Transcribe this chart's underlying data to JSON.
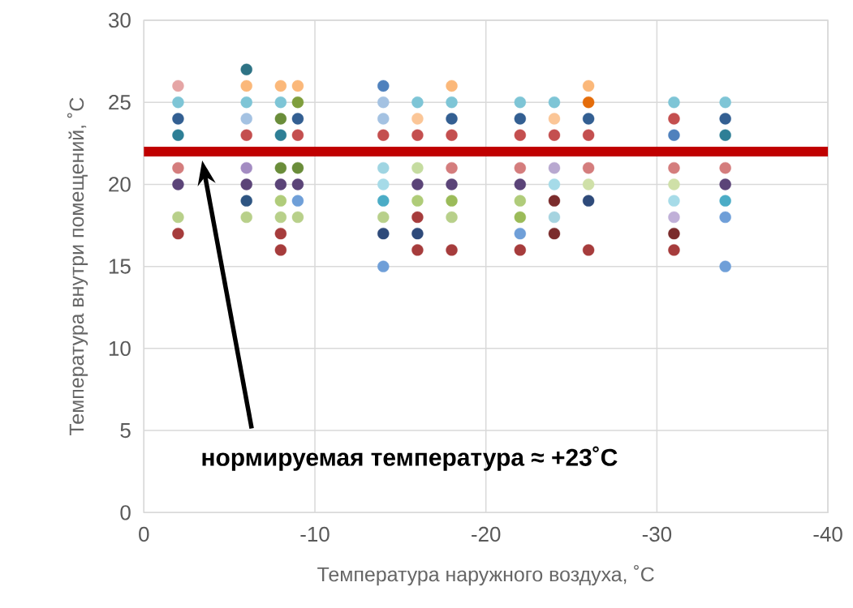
{
  "chart_data": {
    "type": "scatter",
    "xlabel": "Температура наружного воздуха, ˚C",
    "ylabel": "Температура внутри помещений, ˚C",
    "xlim": [
      0,
      -40
    ],
    "xticks": [
      0,
      -10,
      -20,
      -30,
      -40
    ],
    "ylim": [
      0,
      30
    ],
    "yticks": [
      0,
      5,
      10,
      15,
      20,
      25,
      30
    ],
    "grid": true,
    "marker": "circle",
    "ref_lines": [
      {
        "axis": "y",
        "value": 22,
        "color": "#c00000"
      }
    ],
    "annotations": [
      "нормируемая температура ≈ +23˚C"
    ],
    "series": [
      {
        "x": [
          -2,
          -2,
          -2,
          -2,
          -2,
          -2,
          -2,
          -2,
          -6,
          -6,
          -6,
          -6,
          -6,
          -6,
          -6,
          -6,
          -6,
          -8,
          -8,
          -8,
          -8,
          -8,
          -8,
          -8,
          -8,
          -8,
          -8,
          -9,
          -9,
          -9,
          -9,
          -9,
          -9,
          -9,
          -9,
          -14,
          -14,
          -14,
          -14,
          -14,
          -14,
          -14,
          -14,
          -14,
          -14,
          -16,
          -16,
          -16,
          -16,
          -16,
          -16,
          -16,
          -16,
          -16,
          -18,
          -18,
          -18,
          -18,
          -18,
          -18,
          -18,
          -18,
          -18,
          -22,
          -22,
          -22,
          -22,
          -22,
          -22,
          -22,
          -22,
          -22,
          -24,
          -24,
          -24,
          -24,
          -24,
          -24,
          -24,
          -24,
          -26,
          -26,
          -26,
          -26,
          -26,
          -26,
          -26,
          -26,
          -31,
          -31,
          -31,
          -31,
          -31,
          -31,
          -31,
          -31,
          -31,
          -34,
          -34,
          -34,
          -34,
          -34,
          -34,
          -34,
          -34
        ],
        "values": [
          26,
          25,
          24,
          23,
          21,
          20,
          18,
          17,
          27,
          26,
          25,
          24,
          23,
          21,
          20,
          19,
          18,
          26,
          25,
          24,
          23,
          21,
          20,
          19,
          18,
          17,
          16,
          26,
          25,
          24,
          23,
          21,
          20,
          19,
          18,
          26,
          25,
          24,
          23,
          21,
          20,
          19,
          18,
          17,
          15,
          25,
          24,
          23,
          21,
          20,
          19,
          18,
          17,
          16,
          26,
          25,
          24,
          23,
          21,
          20,
          19,
          18,
          16,
          25,
          24,
          23,
          21,
          20,
          19,
          18,
          17,
          16,
          25,
          24,
          23,
          21,
          20,
          19,
          18,
          17,
          26,
          25,
          24,
          23,
          21,
          20,
          19,
          16,
          25,
          24,
          23,
          21,
          20,
          19,
          18,
          17,
          16,
          25,
          24,
          23,
          21,
          20,
          19,
          18,
          15
        ],
        "colors": [
          "#e5a5a5",
          "#7ec5d6",
          "#335f92",
          "#2e7f96",
          "#d47d7d",
          "#5b4478",
          "#b8d08a",
          "#a63c3c",
          "#2e7385",
          "#fbb87a",
          "#7ec5d6",
          "#a4c2e2",
          "#c44f4f",
          "#a38cc2",
          "#5b4478",
          "#2e5582",
          "#b8d08a",
          "#fbb87a",
          "#7ec5d6",
          "#6a8d3a",
          "#2e7f96",
          "#6a8d3a",
          "#5b4478",
          "#b0cc7a",
          "#b8d08a",
          "#a63c3c",
          "#a63c3c",
          "#fbb87a",
          "#7f9e3d",
          "#335f92",
          "#c44f4f",
          "#6a8d3a",
          "#5b4478",
          "#6f9fd8",
          "#b8d08a",
          "#4f81bd",
          "#a4c2e2",
          "#a4c2e2",
          "#c44f4f",
          "#9fd5e2",
          "#a6dbe8",
          "#4bacc6",
          "#b8d08a",
          "#2e4a7a",
          "#6f9fd8",
          "#7ec5d6",
          "#fbc697",
          "#c44f4f",
          "#c5dca0",
          "#5b4478",
          "#afcc78",
          "#a63c3c",
          "#2e4a7a",
          "#a63c3c",
          "#fbb87a",
          "#7ec5d6",
          "#335f92",
          "#c44f4f",
          "#d47d7d",
          "#5b4478",
          "#9bbb59",
          "#b8d08a",
          "#a63c3c",
          "#7ec5d6",
          "#335f92",
          "#c44f4f",
          "#d47d7d",
          "#5b4478",
          "#b0cc7a",
          "#9bbb59",
          "#6f9fd8",
          "#a63c3c",
          "#7ec5d6",
          "#fbc697",
          "#c44f4f",
          "#b8a8d0",
          "#a6dbe8",
          "#7b2c2c",
          "#a6d4e0",
          "#7b2c2c",
          "#fbb87a",
          "#e46c0a",
          "#335f92",
          "#c44f4f",
          "#d47d7d",
          "#cfe0a8",
          "#2e4a7a",
          "#a63c3c",
          "#7ec5d6",
          "#c44f4f",
          "#4f81bd",
          "#d47d7d",
          "#cfe0a8",
          "#a6dbe8",
          "#c0b0d8",
          "#7b2c2c",
          "#a63c3c",
          "#7ec5d6",
          "#335f92",
          "#2e7f96",
          "#d47d7d",
          "#5b4478",
          "#4bacc6",
          "#6f9fd8",
          "#6f9fd8"
        ]
      }
    ]
  }
}
